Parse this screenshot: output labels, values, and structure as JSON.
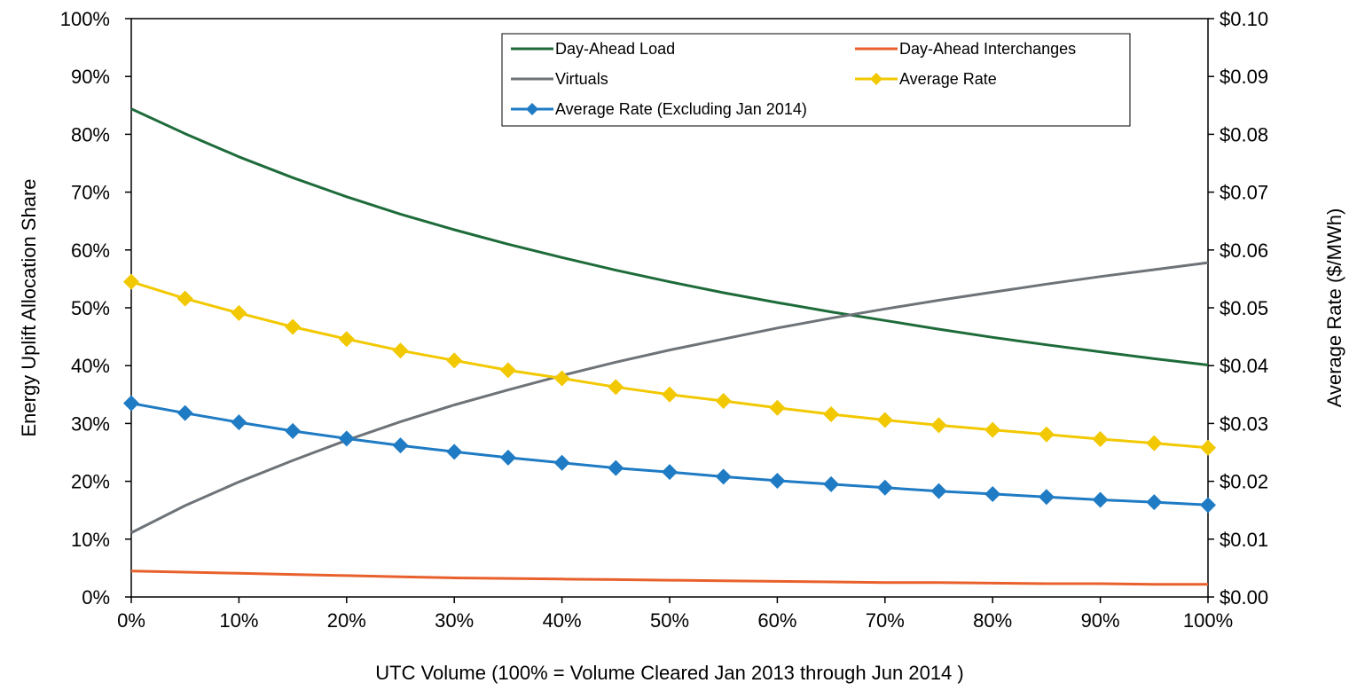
{
  "chart_data": {
    "type": "line",
    "xlabel": "UTC Volume (100% = Volume Cleared Jan 2013 through Jun 2014 )",
    "ylabel_left": "Energy Uplift Allocation Share",
    "ylabel_right": "Average Rate ($/MWh)",
    "x_ticks": [
      "0%",
      "10%",
      "20%",
      "30%",
      "40%",
      "50%",
      "60%",
      "70%",
      "80%",
      "90%",
      "100%"
    ],
    "y_left_ticks": [
      "0%",
      "10%",
      "20%",
      "30%",
      "40%",
      "50%",
      "60%",
      "70%",
      "80%",
      "90%",
      "100%"
    ],
    "y_right_ticks": [
      "$0.00",
      "$0.01",
      "$0.02",
      "$0.03",
      "$0.04",
      "$0.05",
      "$0.06",
      "$0.07",
      "$0.08",
      "$0.09",
      "$0.10"
    ],
    "xlim": [
      0,
      100
    ],
    "ylim_left": [
      0,
      100
    ],
    "ylim_right": [
      0,
      0.1
    ],
    "grid": false,
    "legend_position": "top-right",
    "x": [
      0,
      5,
      10,
      15,
      20,
      25,
      30,
      35,
      40,
      45,
      50,
      55,
      60,
      65,
      70,
      75,
      80,
      85,
      90,
      95,
      100
    ],
    "series": [
      {
        "name": "Day-Ahead Load",
        "axis": "left",
        "color": "#1e6b3a",
        "marker": "none",
        "values": [
          84.4,
          80.1,
          76.1,
          72.5,
          69.2,
          66.2,
          63.5,
          61.0,
          58.7,
          56.5,
          54.5,
          52.6,
          50.9,
          49.3,
          47.8,
          46.3,
          44.9,
          43.6,
          42.4,
          41.2,
          40.1
        ]
      },
      {
        "name": "Day-Ahead Interchanges",
        "axis": "left",
        "color": "#e8612c",
        "marker": "none",
        "values": [
          4.5,
          4.3,
          4.1,
          3.9,
          3.7,
          3.5,
          3.3,
          3.2,
          3.1,
          3.0,
          2.9,
          2.8,
          2.7,
          2.6,
          2.5,
          2.5,
          2.4,
          2.3,
          2.3,
          2.2,
          2.2
        ]
      },
      {
        "name": "Virtuals",
        "axis": "left",
        "color": "#6d7378",
        "marker": "none",
        "values": [
          11.1,
          15.8,
          19.9,
          23.6,
          27.1,
          30.3,
          33.2,
          35.8,
          38.3,
          40.6,
          42.7,
          44.6,
          46.5,
          48.2,
          49.8,
          51.3,
          52.7,
          54.1,
          55.4,
          56.6,
          57.8
        ]
      },
      {
        "name": "Average Rate",
        "axis": "right",
        "color": "#f2c800",
        "marker": "diamond",
        "values": [
          0.0545,
          0.0516,
          0.0491,
          0.0467,
          0.0446,
          0.0426,
          0.0409,
          0.0392,
          0.0378,
          0.0363,
          0.035,
          0.0339,
          0.0327,
          0.0316,
          0.0306,
          0.0297,
          0.0289,
          0.0281,
          0.0273,
          0.0266,
          0.0258
        ]
      },
      {
        "name": "Average Rate (Excluding Jan 2014)",
        "axis": "right",
        "color": "#1e7bc4",
        "marker": "diamond",
        "values": [
          0.0335,
          0.0318,
          0.0302,
          0.0287,
          0.0274,
          0.0262,
          0.0251,
          0.0241,
          0.0232,
          0.0223,
          0.0216,
          0.0208,
          0.0201,
          0.0195,
          0.0189,
          0.0183,
          0.0178,
          0.0173,
          0.0168,
          0.0164,
          0.0159
        ]
      }
    ]
  }
}
